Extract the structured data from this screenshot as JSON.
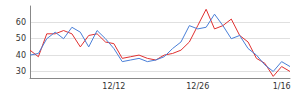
{
  "chart_data": {
    "type": "line",
    "categories": [
      null,
      null,
      null,
      null,
      null,
      null,
      null,
      null,
      null,
      null,
      "12/12",
      null,
      null,
      null,
      null,
      null,
      null,
      null,
      null,
      null,
      "12/26",
      null,
      null,
      null,
      null,
      null,
      null,
      null,
      null,
      null,
      "1/16",
      null
    ],
    "series": [
      {
        "color": "#e03030",
        "values": [
          43,
          39,
          53,
          53,
          55,
          53,
          45,
          52,
          53,
          48,
          47,
          38,
          39,
          40,
          38,
          37,
          40,
          41,
          43,
          48,
          58,
          68,
          56,
          58,
          62,
          52,
          48,
          38,
          35,
          27,
          33,
          30
        ]
      },
      {
        "color": "#4a7fd8",
        "values": [
          40,
          41,
          50,
          54,
          50,
          57,
          54,
          45,
          55,
          50,
          44,
          36,
          37,
          38,
          36,
          37,
          39,
          44,
          48,
          58,
          56,
          57,
          65,
          58,
          50,
          52,
          44,
          40,
          34,
          30,
          36,
          33
        ]
      }
    ],
    "ylim": [
      26,
      70
    ],
    "yticks": [
      30,
      40,
      50,
      60
    ],
    "grid": true
  }
}
